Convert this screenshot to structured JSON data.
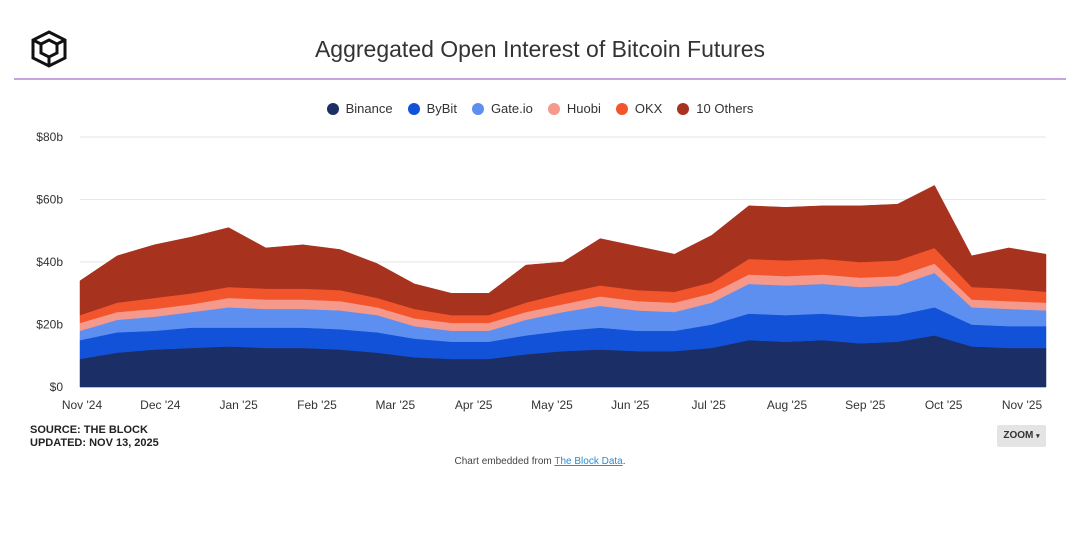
{
  "header": {
    "title": "Aggregated Open Interest of Bitcoin Futures",
    "logo_icon": "the-block-cube-icon"
  },
  "footer": {
    "source": "SOURCE: THE BLOCK",
    "updated": "UPDATED: NOV 13, 2025",
    "zoom_label": "ZOOM",
    "zoom_caret": "▾",
    "embed_prefix": "Chart embedded from ",
    "embed_link": "The Block Data",
    "embed_suffix": "."
  },
  "chart_data": {
    "type": "area",
    "stacked": true,
    "title": "Aggregated Open Interest of Bitcoin Futures",
    "xlabel": "",
    "ylabel": "",
    "ylim": [
      0,
      80
    ],
    "yticks": [
      0,
      20,
      40,
      60,
      80
    ],
    "ytick_labels": [
      "$0",
      "$20b",
      "$40b",
      "$60b",
      "$80b"
    ],
    "x_tick_labels": [
      "Nov '24",
      "Dec '24",
      "Jan '25",
      "Feb '25",
      "Mar '25",
      "Apr '25",
      "May '25",
      "Jun '25",
      "Jul '25",
      "Aug '25",
      "Sep '25",
      "Oct '25",
      "Nov '25"
    ],
    "grid": true,
    "legend_position": "top-center",
    "x": [
      "Nov 1 '24",
      "Nov 15 '24",
      "Dec 1 '24",
      "Dec 15 '24",
      "Jan 1 '25",
      "Jan 15 '25",
      "Feb 1 '25",
      "Feb 15 '25",
      "Mar 1 '25",
      "Mar 15 '25",
      "Apr 1 '25",
      "Apr 15 '25",
      "May 1 '25",
      "May 15 '25",
      "Jun 1 '25",
      "Jun 15 '25",
      "Jul 1 '25",
      "Jul 15 '25",
      "Aug 1 '25",
      "Aug 15 '25",
      "Sep 1 '25",
      "Sep 15 '25",
      "Oct 1 '25",
      "Oct 10 '25",
      "Oct 20 '25",
      "Nov 1 '25",
      "Nov 13 '25"
    ],
    "series": [
      {
        "name": "Binance",
        "color": "#1b2f66",
        "values": [
          9,
          11,
          12,
          12.5,
          13,
          12.5,
          12.5,
          12,
          11,
          9.5,
          9,
          9,
          10.5,
          11.5,
          12,
          11.5,
          11.5,
          12.5,
          15,
          14.5,
          15,
          14,
          14.5,
          16.5,
          13,
          12.5,
          12.5
        ]
      },
      {
        "name": "ByBit",
        "color": "#1252d9",
        "values": [
          6,
          6.5,
          6,
          6.5,
          6,
          6.5,
          6.5,
          6.5,
          6.5,
          6,
          5.5,
          5.5,
          6,
          6.5,
          7,
          6.5,
          6.5,
          7.5,
          8.5,
          8.5,
          8.5,
          8.5,
          8.5,
          9,
          7,
          7,
          7
        ]
      },
      {
        "name": "Gate.io",
        "color": "#5c8ff0",
        "values": [
          3,
          4,
          4.5,
          5,
          6.5,
          6,
          6,
          6,
          5.5,
          4,
          3.5,
          3.5,
          5,
          6,
          7,
          6.5,
          6,
          7,
          9.5,
          9.5,
          9.5,
          9.5,
          9.5,
          11,
          5.5,
          5.5,
          5
        ]
      },
      {
        "name": "Huobi",
        "color": "#f4998b",
        "values": [
          2.5,
          2.5,
          2.5,
          2.5,
          3,
          3,
          3,
          3,
          2.5,
          2.5,
          2.5,
          2.5,
          2.5,
          2.5,
          3,
          3,
          3,
          3,
          3,
          3,
          3,
          3,
          3,
          3,
          2.5,
          2.5,
          2.5
        ]
      },
      {
        "name": "OKX",
        "color": "#f2552c",
        "values": [
          2.5,
          3,
          3.5,
          3.5,
          3.5,
          3.5,
          3.5,
          3.5,
          3,
          3,
          2.5,
          2.5,
          3,
          3.5,
          3.5,
          3.5,
          3.5,
          3.5,
          5,
          5,
          5,
          5,
          5,
          5,
          4,
          4,
          3.5
        ]
      },
      {
        "name": "10 Others",
        "color": "#a7321d",
        "values": [
          11,
          15,
          17,
          18,
          19,
          13,
          14,
          13,
          11,
          8,
          7,
          7,
          12,
          10,
          15,
          14,
          12,
          15,
          17,
          17,
          17,
          18,
          18,
          20,
          10,
          13,
          12
        ]
      }
    ]
  }
}
